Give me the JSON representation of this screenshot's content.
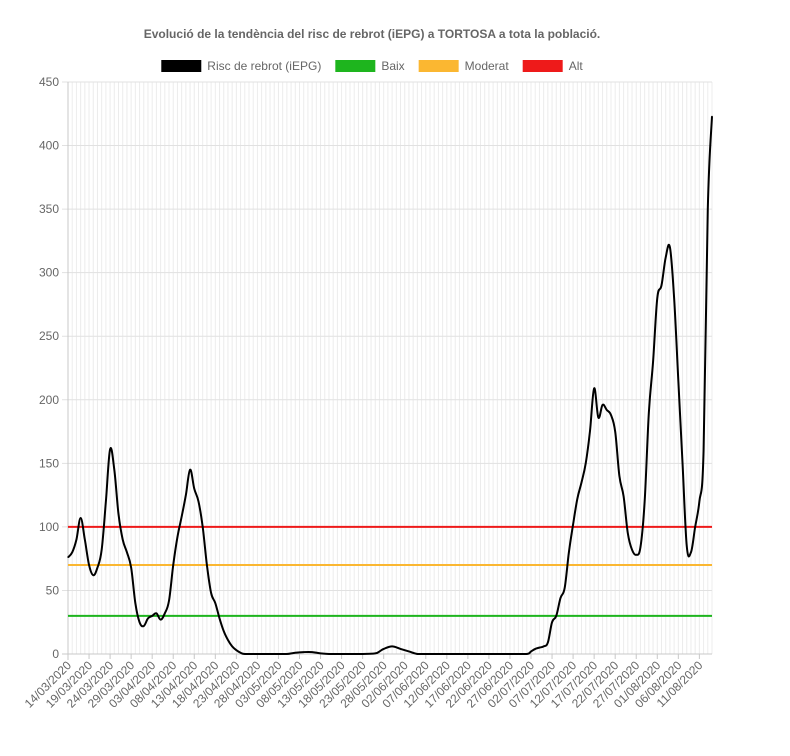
{
  "chart_data": {
    "type": "line",
    "title": "Evolució de la tendència del risc de rebrot (iEPG) a TORTOSA a tota la població.",
    "legend_position": "top",
    "grid": true,
    "ylim": [
      0,
      450
    ],
    "y_ticks": [
      "0",
      "50",
      "100",
      "150",
      "200",
      "250",
      "300",
      "350",
      "400",
      "450"
    ],
    "x_tick_labels": [
      "14/03/2020",
      "19/03/2020",
      "24/03/2020",
      "29/03/2020",
      "03/04/2020",
      "08/04/2020",
      "13/04/2020",
      "18/04/2020",
      "23/04/2020",
      "28/04/2020",
      "03/05/2020",
      "08/05/2020",
      "13/05/2020",
      "18/05/2020",
      "23/05/2020",
      "28/05/2020",
      "02/06/2020",
      "07/06/2020",
      "12/06/2020",
      "17/06/2020",
      "22/06/2020",
      "27/06/2020",
      "02/07/2020",
      "07/07/2020",
      "12/07/2020",
      "17/07/2020",
      "22/07/2020",
      "27/07/2020",
      "01/08/2020",
      "06/08/2020",
      "11/08/2020"
    ],
    "x_start": "14/03/2020",
    "x_end": "14/08/2020",
    "series": [
      {
        "name": "Risc de rebrot (iEPG)",
        "color": "#000000",
        "points": [
          [
            "14/03/2020",
            76
          ],
          [
            "15/03/2020",
            80
          ],
          [
            "16/03/2020",
            90
          ],
          [
            "17/03/2020",
            107
          ],
          [
            "18/03/2020",
            90
          ],
          [
            "19/03/2020",
            70
          ],
          [
            "20/03/2020",
            62
          ],
          [
            "21/03/2020",
            68
          ],
          [
            "22/03/2020",
            82
          ],
          [
            "23/03/2020",
            120
          ],
          [
            "24/03/2020",
            161
          ],
          [
            "25/03/2020",
            145
          ],
          [
            "26/03/2020",
            110
          ],
          [
            "27/03/2020",
            90
          ],
          [
            "28/03/2020",
            80
          ],
          [
            "29/03/2020",
            68
          ],
          [
            "30/03/2020",
            40
          ],
          [
            "31/03/2020",
            25
          ],
          [
            "01/04/2020",
            22
          ],
          [
            "02/04/2020",
            28
          ],
          [
            "03/04/2020",
            30
          ],
          [
            "04/04/2020",
            32
          ],
          [
            "05/04/2020",
            27
          ],
          [
            "06/04/2020",
            32
          ],
          [
            "07/04/2020",
            42
          ],
          [
            "08/04/2020",
            70
          ],
          [
            "09/04/2020",
            92
          ],
          [
            "10/04/2020",
            108
          ],
          [
            "11/04/2020",
            125
          ],
          [
            "12/04/2020",
            145
          ],
          [
            "13/04/2020",
            130
          ],
          [
            "14/04/2020",
            120
          ],
          [
            "15/04/2020",
            100
          ],
          [
            "16/04/2020",
            70
          ],
          [
            "17/04/2020",
            48
          ],
          [
            "18/04/2020",
            40
          ],
          [
            "19/04/2020",
            28
          ],
          [
            "20/04/2020",
            18
          ],
          [
            "21/04/2020",
            11
          ],
          [
            "22/04/2020",
            6
          ],
          [
            "23/04/2020",
            3
          ],
          [
            "24/04/2020",
            1
          ],
          [
            "25/04/2020",
            0
          ],
          [
            "28/04/2020",
            0
          ],
          [
            "03/05/2020",
            0
          ],
          [
            "05/05/2020",
            0
          ],
          [
            "07/05/2020",
            1
          ],
          [
            "09/05/2020",
            1.5
          ],
          [
            "11/05/2020",
            1.5
          ],
          [
            "13/05/2020",
            0.5
          ],
          [
            "15/05/2020",
            0
          ],
          [
            "18/05/2020",
            0
          ],
          [
            "23/05/2020",
            0
          ],
          [
            "26/05/2020",
            0.5
          ],
          [
            "27/05/2020",
            2
          ],
          [
            "28/05/2020",
            4
          ],
          [
            "30/05/2020",
            6
          ],
          [
            "01/06/2020",
            4
          ],
          [
            "03/06/2020",
            2
          ],
          [
            "05/06/2020",
            0
          ],
          [
            "07/06/2020",
            0
          ],
          [
            "12/06/2020",
            0
          ],
          [
            "17/06/2020",
            0
          ],
          [
            "22/06/2020",
            0
          ],
          [
            "27/06/2020",
            0
          ],
          [
            "01/07/2020",
            0
          ],
          [
            "02/07/2020",
            2
          ],
          [
            "03/07/2020",
            4
          ],
          [
            "04/07/2020",
            5
          ],
          [
            "05/07/2020",
            6
          ],
          [
            "06/07/2020",
            9
          ],
          [
            "07/07/2020",
            25
          ],
          [
            "08/07/2020",
            30
          ],
          [
            "09/07/2020",
            44
          ],
          [
            "10/07/2020",
            52
          ],
          [
            "11/07/2020",
            80
          ],
          [
            "12/07/2020",
            102
          ],
          [
            "13/07/2020",
            122
          ],
          [
            "14/07/2020",
            135
          ],
          [
            "15/07/2020",
            150
          ],
          [
            "16/07/2020",
            175
          ],
          [
            "17/07/2020",
            209
          ],
          [
            "18/07/2020",
            186
          ],
          [
            "19/07/2020",
            196
          ],
          [
            "20/07/2020",
            192
          ],
          [
            "21/07/2020",
            188
          ],
          [
            "22/07/2020",
            175
          ],
          [
            "23/07/2020",
            140
          ],
          [
            "24/07/2020",
            124
          ],
          [
            "25/07/2020",
            95
          ],
          [
            "26/07/2020",
            82
          ],
          [
            "27/07/2020",
            78
          ],
          [
            "28/07/2020",
            84
          ],
          [
            "29/07/2020",
            120
          ],
          [
            "30/07/2020",
            190
          ],
          [
            "31/07/2020",
            230
          ],
          [
            "01/08/2020",
            280
          ],
          [
            "02/08/2020",
            290
          ],
          [
            "03/08/2020",
            312
          ],
          [
            "04/08/2020",
            320
          ],
          [
            "05/08/2020",
            280
          ],
          [
            "06/08/2020",
            215
          ],
          [
            "07/08/2020",
            150
          ],
          [
            "08/08/2020",
            85
          ],
          [
            "09/08/2020",
            80
          ],
          [
            "10/08/2020",
            100
          ],
          [
            "11/08/2020",
            120
          ],
          [
            "12/08/2020",
            160
          ],
          [
            "13/08/2020",
            350
          ],
          [
            "14/08/2020",
            423
          ]
        ]
      },
      {
        "name": "Baix",
        "color": "#1eb51e",
        "constant": 30
      },
      {
        "name": "Moderat",
        "color": "#fbb731",
        "constant": 70
      },
      {
        "name": "Alt",
        "color": "#ee1a1a",
        "constant": 100
      }
    ]
  }
}
